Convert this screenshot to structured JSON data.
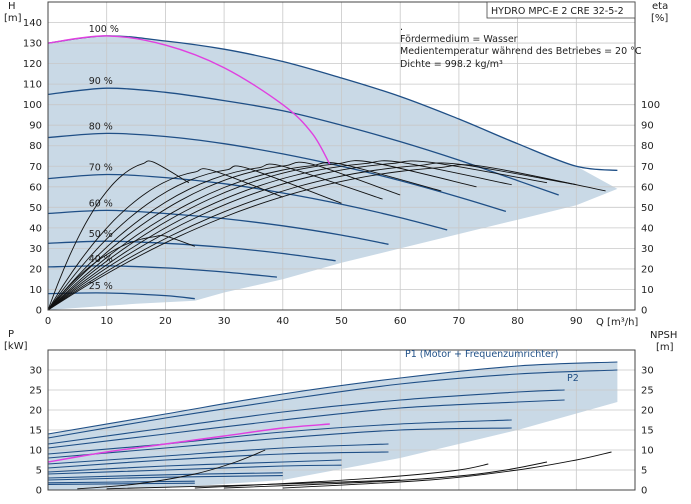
{
  "header": {
    "pump_name": "HYDRO MPC-E 2 CRE 32-5-2"
  },
  "info": {
    "line0": ".",
    "line1": "Fördermedium = Wasser",
    "line2": "Medientemperatur während des Betriebes = 20 °C",
    "line3": "Dichte = 998.2 kg/m³"
  },
  "colors": {
    "region": "#c9d9e6",
    "speed_curve": "#1f4f86",
    "efficiency_curve": "#111111",
    "max_curve": "#e040e0",
    "grid": "#c8c8c8"
  },
  "chart_data": [
    {
      "type": "line",
      "name": "head-efficiency",
      "title": "",
      "x_unit": "Q [m³/h]",
      "y_label": "H",
      "y_unit": "[m]",
      "y2_label": "eta",
      "y2_unit": "[%]",
      "xlim": [
        0,
        100
      ],
      "ylim": [
        0,
        150
      ],
      "y2lim": [
        0,
        150
      ],
      "x_ticks": [
        0,
        10,
        20,
        30,
        40,
        50,
        60,
        70,
        80,
        90
      ],
      "y_ticks": [
        0,
        10,
        20,
        30,
        40,
        50,
        60,
        70,
        80,
        90,
        100,
        110,
        120,
        130,
        140
      ],
      "y2_ticks": [
        0,
        10,
        20,
        30,
        40,
        50,
        60,
        70,
        80,
        90,
        100
      ],
      "grid": true,
      "operating_region": [
        [
          0,
          130
        ],
        [
          10,
          133.5
        ],
        [
          20,
          131
        ],
        [
          30,
          127
        ],
        [
          40,
          121
        ],
        [
          50,
          113
        ],
        [
          60,
          104
        ],
        [
          70,
          93
        ],
        [
          80,
          81
        ],
        [
          90,
          70
        ],
        [
          97,
          59
        ],
        [
          90,
          51
        ],
        [
          80,
          44
        ],
        [
          70,
          37
        ],
        [
          60,
          30
        ],
        [
          50,
          23
        ],
        [
          40,
          15
        ],
        [
          30,
          8.5
        ],
        [
          25,
          4.5
        ],
        [
          15,
          3
        ],
        [
          5,
          1
        ],
        [
          0,
          0
        ]
      ],
      "speed_curves": [
        {
          "label": "100 %",
          "points": [
            [
              0,
              130
            ],
            [
              10,
              133.5
            ],
            [
              20,
              131
            ],
            [
              30,
              127
            ],
            [
              40,
              121
            ],
            [
              50,
              113
            ],
            [
              60,
              104
            ],
            [
              70,
              93
            ],
            [
              80,
              81
            ],
            [
              90,
              70
            ],
            [
              97,
              68
            ]
          ]
        },
        {
          "label": "90 %",
          "points": [
            [
              0,
              105
            ],
            [
              10,
              108
            ],
            [
              20,
              106
            ],
            [
              30,
              102
            ],
            [
              40,
              97
            ],
            [
              50,
              90
            ],
            [
              60,
              82
            ],
            [
              70,
              73
            ],
            [
              80,
              63
            ],
            [
              87,
              56
            ]
          ]
        },
        {
          "label": "80 %",
          "points": [
            [
              0,
              84
            ],
            [
              10,
              86
            ],
            [
              20,
              84.5
            ],
            [
              30,
              81
            ],
            [
              40,
              76
            ],
            [
              50,
              70
            ],
            [
              60,
              63
            ],
            [
              70,
              55
            ],
            [
              78,
              48
            ]
          ]
        },
        {
          "label": "70 %",
          "points": [
            [
              0,
              64
            ],
            [
              10,
              66
            ],
            [
              20,
              64.5
            ],
            [
              30,
              61.5
            ],
            [
              40,
              57
            ],
            [
              50,
              51.5
            ],
            [
              60,
              45
            ],
            [
              68,
              39
            ]
          ]
        },
        {
          "label": "60 %",
          "points": [
            [
              0,
              47
            ],
            [
              10,
              48.5
            ],
            [
              20,
              47
            ],
            [
              30,
              44.5
            ],
            [
              40,
              41
            ],
            [
              50,
              36.5
            ],
            [
              58,
              32
            ]
          ]
        },
        {
          "label": "50 %",
          "points": [
            [
              0,
              32.5
            ],
            [
              10,
              33.5
            ],
            [
              20,
              32.5
            ],
            [
              30,
              30.5
            ],
            [
              40,
              27.5
            ],
            [
              49,
              24
            ]
          ]
        },
        {
          "label": "40 %",
          "points": [
            [
              0,
              21
            ],
            [
              10,
              21.5
            ],
            [
              20,
              20.5
            ],
            [
              30,
              18.5
            ],
            [
              39,
              16
            ]
          ]
        },
        {
          "label": "25 %",
          "points": [
            [
              0,
              8
            ],
            [
              10,
              8.3
            ],
            [
              20,
              7
            ],
            [
              25,
              5.5
            ]
          ]
        }
      ],
      "max_head_curve": [
        [
          0,
          130
        ],
        [
          10,
          133.5
        ],
        [
          20,
          129
        ],
        [
          30,
          118
        ],
        [
          40,
          100
        ],
        [
          45,
          86
        ],
        [
          48,
          71
        ]
      ],
      "efficiency_curves": [
        {
          "peak_q": 18,
          "peak_eta": 72,
          "end_q": 24,
          "end_eta": 62
        },
        {
          "peak_q": 20,
          "peak_eta": 36,
          "end_q": 25,
          "end_eta": 31
        },
        {
          "peak_q": 28,
          "peak_eta": 68,
          "end_q": 40,
          "end_eta": 55
        },
        {
          "peak_q": 34,
          "peak_eta": 69,
          "end_q": 50,
          "end_eta": 52
        },
        {
          "peak_q": 40,
          "peak_eta": 70,
          "end_q": 57,
          "end_eta": 54
        },
        {
          "peak_q": 45,
          "peak_eta": 71,
          "end_q": 60,
          "end_eta": 56
        },
        {
          "peak_q": 50,
          "peak_eta": 71,
          "end_q": 67,
          "end_eta": 58
        },
        {
          "peak_q": 55,
          "peak_eta": 72,
          "end_q": 73,
          "end_eta": 60
        },
        {
          "peak_q": 60,
          "peak_eta": 72,
          "end_q": 79,
          "end_eta": 61
        },
        {
          "peak_q": 65,
          "peak_eta": 72,
          "end_q": 85,
          "end_eta": 62
        },
        {
          "peak_q": 70,
          "peak_eta": 71,
          "end_q": 90,
          "end_eta": 61
        },
        {
          "peak_q": 74,
          "peak_eta": 70,
          "end_q": 95,
          "end_eta": 58
        }
      ]
    },
    {
      "type": "line",
      "name": "power-npsh",
      "title": "",
      "y_label": "P",
      "y_unit": "[kW]",
      "y2_label": "NPSH",
      "y2_unit": "[m]",
      "xlim": [
        0,
        100
      ],
      "ylim": [
        0,
        35
      ],
      "y2lim": [
        0,
        35
      ],
      "y_ticks": [
        0,
        5,
        10,
        15,
        20,
        25,
        30
      ],
      "y2_ticks": [
        0,
        5,
        10,
        15,
        20,
        25,
        30
      ],
      "grid": true,
      "operating_region": [
        [
          0,
          14
        ],
        [
          20,
          19
        ],
        [
          40,
          24
        ],
        [
          60,
          28
        ],
        [
          80,
          31
        ],
        [
          97,
          32
        ],
        [
          97,
          22
        ],
        [
          80,
          15
        ],
        [
          60,
          8
        ],
        [
          40,
          2.5
        ],
        [
          20,
          0.5
        ],
        [
          0,
          0
        ]
      ],
      "p1_label": "P1 (Motor + Frequenzumrichter)",
      "p2_label": "P2",
      "power_curves": [
        {
          "points": [
            [
              0,
              14
            ],
            [
              20,
              19
            ],
            [
              40,
              24
            ],
            [
              60,
              28
            ],
            [
              80,
              31
            ],
            [
              97,
              32
            ]
          ]
        },
        {
          "points": [
            [
              0,
              13
            ],
            [
              20,
              18
            ],
            [
              40,
              22.5
            ],
            [
              60,
              26.5
            ],
            [
              80,
              29
            ],
            [
              97,
              30
            ]
          ]
        },
        {
          "points": [
            [
              0,
              11.5
            ],
            [
              20,
              15.5
            ],
            [
              40,
              19.5
            ],
            [
              60,
              22.5
            ],
            [
              80,
              24.5
            ],
            [
              88,
              25
            ]
          ]
        },
        {
          "points": [
            [
              0,
              10.5
            ],
            [
              20,
              14
            ],
            [
              40,
              17.5
            ],
            [
              60,
              20.5
            ],
            [
              80,
              22
            ],
            [
              88,
              22.5
            ]
          ]
        },
        {
          "points": [
            [
              0,
              9
            ],
            [
              20,
              11.5
            ],
            [
              40,
              14.5
            ],
            [
              60,
              16.5
            ],
            [
              79,
              17.5
            ]
          ]
        },
        {
          "points": [
            [
              0,
              8
            ],
            [
              20,
              10.5
            ],
            [
              40,
              13
            ],
            [
              60,
              15
            ],
            [
              79,
              15.5
            ]
          ]
        },
        {
          "points": [
            [
              0,
              6.5
            ],
            [
              20,
              8.5
            ],
            [
              40,
              10.5
            ],
            [
              58,
              11.5
            ]
          ]
        },
        {
          "points": [
            [
              0,
              5.5
            ],
            [
              20,
              7.5
            ],
            [
              40,
              9
            ],
            [
              58,
              9.5
            ]
          ]
        },
        {
          "points": [
            [
              0,
              4.5
            ],
            [
              20,
              6
            ],
            [
              40,
              7
            ],
            [
              50,
              7.5
            ]
          ]
        },
        {
          "points": [
            [
              0,
              4
            ],
            [
              20,
              5
            ],
            [
              40,
              6
            ],
            [
              50,
              6.2
            ]
          ]
        },
        {
          "points": [
            [
              0,
              3
            ],
            [
              20,
              3.8
            ],
            [
              40,
              4.3
            ]
          ]
        },
        {
          "points": [
            [
              0,
              2.5
            ],
            [
              20,
              3.2
            ],
            [
              40,
              3.6
            ]
          ]
        },
        {
          "points": [
            [
              0,
              1.8
            ],
            [
              25,
              2.2
            ]
          ]
        },
        {
          "points": [
            [
              0,
              1.4
            ],
            [
              25,
              1.7
            ]
          ]
        }
      ],
      "max_power_curve": [
        [
          0,
          7
        ],
        [
          10,
          9.5
        ],
        [
          20,
          11.5
        ],
        [
          30,
          13.5
        ],
        [
          40,
          15.5
        ],
        [
          48,
          16.5
        ]
      ],
      "npsh_curves": [
        {
          "points": [
            [
              5,
              0.3
            ],
            [
              15,
              1.5
            ],
            [
              25,
              4
            ],
            [
              32,
              7
            ],
            [
              37,
              10
            ]
          ]
        },
        {
          "points": [
            [
              25,
              0.5
            ],
            [
              45,
              2
            ],
            [
              60,
              3.5
            ],
            [
              70,
              5
            ],
            [
              75,
              6.5
            ]
          ]
        },
        {
          "points": [
            [
              30,
              0.5
            ],
            [
              55,
              2
            ],
            [
              70,
              3.5
            ],
            [
              78,
              5
            ],
            [
              85,
              7
            ]
          ]
        },
        {
          "points": [
            [
              40,
              0.5
            ],
            [
              65,
              2.5
            ],
            [
              80,
              5
            ],
            [
              90,
              7.5
            ],
            [
              96,
              9.5
            ]
          ]
        },
        {
          "points": [
            [
              10,
              0.3
            ],
            [
              40,
              1.5
            ],
            [
              60,
              2.5
            ]
          ]
        }
      ]
    }
  ]
}
